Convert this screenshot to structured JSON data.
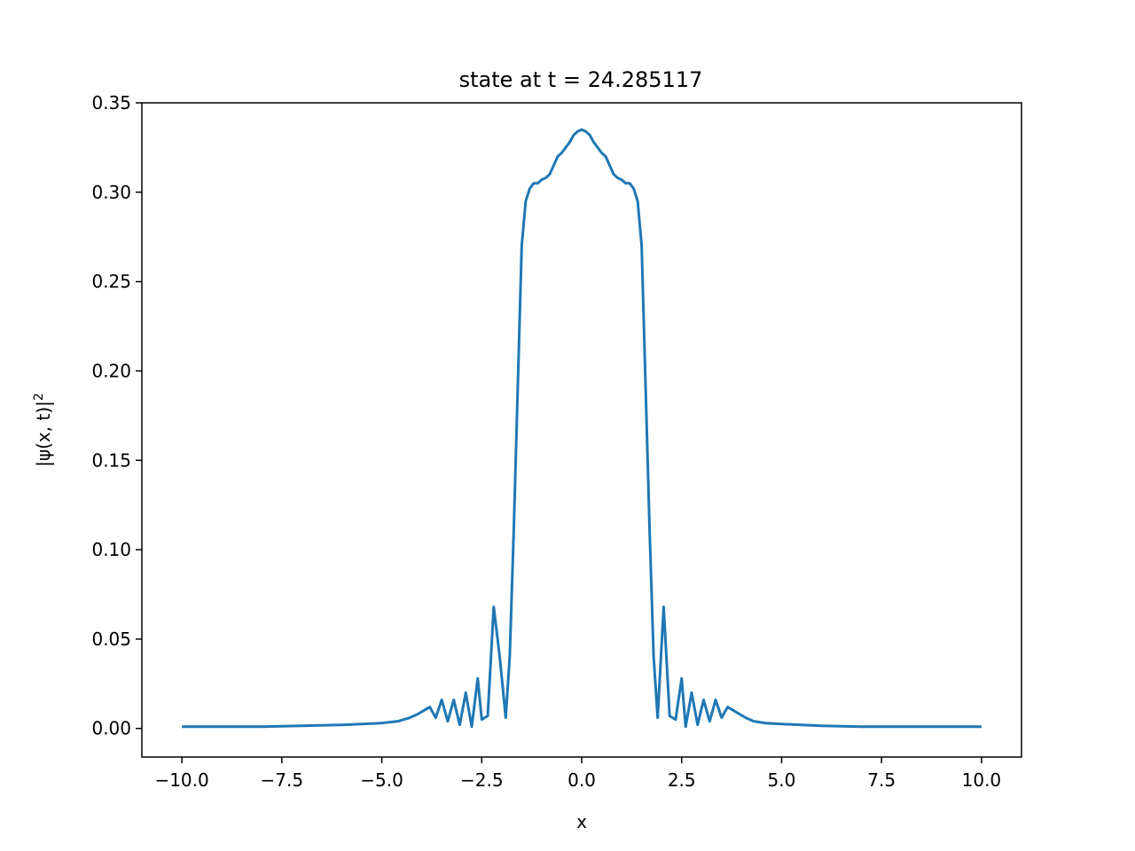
{
  "chart_data": {
    "type": "line",
    "title": "state at t = 24.285117",
    "xlabel": "x",
    "ylabel": "|ψ(x, t)|",
    "ylabel_sup": "2",
    "xlim": [
      -10.0,
      10.0
    ],
    "ylim": [
      -0.016,
      0.35
    ],
    "x_ticks": [
      -10.0,
      -7.5,
      -5.0,
      -2.5,
      0.0,
      2.5,
      5.0,
      7.5,
      10.0
    ],
    "x_tick_labels": [
      "−10.0",
      "−7.5",
      "−5.0",
      "−2.5",
      "0.0",
      "2.5",
      "5.0",
      "7.5",
      "10.0"
    ],
    "y_ticks": [
      0.0,
      0.05,
      0.1,
      0.15,
      0.2,
      0.25,
      0.3,
      0.35
    ],
    "y_tick_labels": [
      "0.00",
      "0.05",
      "0.10",
      "0.15",
      "0.20",
      "0.25",
      "0.30",
      "0.35"
    ],
    "grid": false,
    "legend": "none",
    "series": [
      {
        "color": "#1f77b4",
        "x": [
          -10.0,
          -9.0,
          -8.0,
          -7.0,
          -6.0,
          -5.5,
          -5.0,
          -4.6,
          -4.3,
          -4.1,
          -3.95,
          -3.8,
          -3.65,
          -3.5,
          -3.35,
          -3.2,
          -3.05,
          -2.9,
          -2.75,
          -2.6,
          -2.5,
          -2.35,
          -2.2,
          -2.05,
          -1.9,
          -1.8,
          -1.7,
          -1.6,
          -1.5,
          -1.4,
          -1.3,
          -1.2,
          -1.1,
          -1.0,
          -0.9,
          -0.8,
          -0.7,
          -0.6,
          -0.5,
          -0.4,
          -0.3,
          -0.2,
          -0.1,
          0.0,
          0.1,
          0.2,
          0.3,
          0.4,
          0.5,
          0.6,
          0.7,
          0.8,
          0.9,
          1.0,
          1.1,
          1.2,
          1.3,
          1.4,
          1.5,
          1.6,
          1.7,
          1.8,
          1.9,
          2.05,
          2.2,
          2.35,
          2.5,
          2.6,
          2.75,
          2.9,
          3.05,
          3.2,
          3.35,
          3.5,
          3.65,
          3.8,
          3.95,
          4.1,
          4.3,
          4.6,
          5.0,
          5.5,
          6.0,
          7.0,
          8.0,
          9.0,
          10.0
        ],
        "y": [
          0.001,
          0.001,
          0.001,
          0.0015,
          0.002,
          0.0025,
          0.003,
          0.004,
          0.006,
          0.008,
          0.01,
          0.012,
          0.006,
          0.016,
          0.004,
          0.016,
          0.002,
          0.02,
          0.001,
          0.028,
          0.005,
          0.007,
          0.068,
          0.04,
          0.006,
          0.04,
          0.11,
          0.19,
          0.27,
          0.295,
          0.302,
          0.305,
          0.305,
          0.307,
          0.308,
          0.31,
          0.315,
          0.32,
          0.322,
          0.325,
          0.328,
          0.332,
          0.334,
          0.335,
          0.334,
          0.332,
          0.328,
          0.325,
          0.322,
          0.32,
          0.315,
          0.31,
          0.308,
          0.307,
          0.305,
          0.305,
          0.302,
          0.295,
          0.27,
          0.19,
          0.11,
          0.04,
          0.006,
          0.068,
          0.007,
          0.005,
          0.028,
          0.001,
          0.02,
          0.002,
          0.016,
          0.004,
          0.016,
          0.006,
          0.012,
          0.01,
          0.008,
          0.006,
          0.004,
          0.003,
          0.0025,
          0.002,
          0.0015,
          0.001,
          0.001,
          0.001,
          0.001
        ]
      }
    ]
  }
}
